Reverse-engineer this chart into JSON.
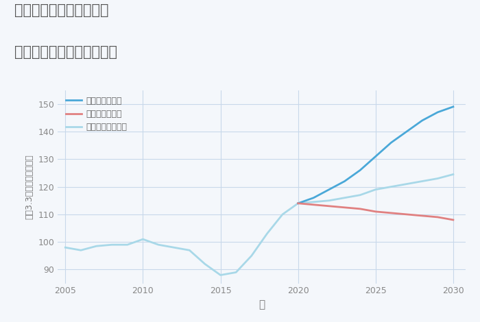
{
  "title_line1": "愛知県豊橋市東赤沢町の",
  "title_line2": "中古マンションの価格推移",
  "xlabel": "年",
  "ylabel": "平（3.3㎡）単価（万円）",
  "legend_good": "グッドシナリオ",
  "legend_bad": "バッドシナリオ",
  "legend_normal": "ノーマルシナリオ",
  "color_good": "#4aa8d8",
  "color_bad": "#e08080",
  "color_normal": "#a8d8e8",
  "background_color": "#f4f7fb",
  "grid_color": "#c8d8ea",
  "title_color": "#555555",
  "history_years": [
    2005,
    2006,
    2007,
    2008,
    2009,
    2010,
    2011,
    2012,
    2013,
    2014,
    2015,
    2016,
    2017,
    2018,
    2019,
    2020
  ],
  "history_values": [
    98,
    97,
    98.5,
    99,
    99,
    101,
    99,
    98,
    97,
    92,
    88,
    89,
    95,
    103,
    110,
    114
  ],
  "forecast_years": [
    2020,
    2021,
    2022,
    2023,
    2024,
    2025,
    2026,
    2027,
    2028,
    2029,
    2030
  ],
  "forecast_good": [
    114,
    116,
    119,
    122,
    126,
    131,
    136,
    140,
    144,
    147,
    149
  ],
  "forecast_bad": [
    114,
    113.5,
    113,
    112.5,
    112,
    111,
    110.5,
    110,
    109.5,
    109,
    108
  ],
  "forecast_normal": [
    114,
    114.5,
    115,
    116,
    117,
    119,
    120,
    121,
    122,
    123,
    124.5
  ],
  "xlim": [
    2004.5,
    2030.8
  ],
  "ylim": [
    85,
    155
  ],
  "xticks": [
    2005,
    2010,
    2015,
    2020,
    2025,
    2030
  ],
  "yticks": [
    90,
    100,
    110,
    120,
    130,
    140,
    150
  ]
}
